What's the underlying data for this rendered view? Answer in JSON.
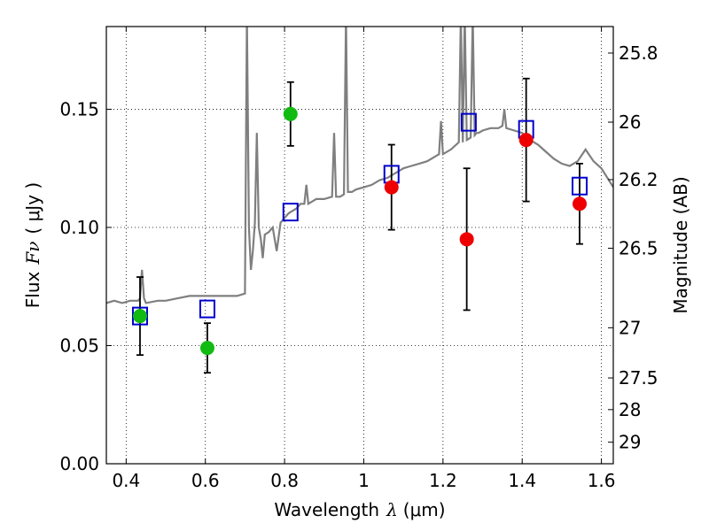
{
  "chart_data": {
    "type": "scatter",
    "xlabel_prefix": "Wavelength",
    "xlabel_symbol": "λ",
    "xlabel_unit": "(μm)",
    "ylabel_prefix": "Flux",
    "ylabel_symbol": "Fν",
    "ylabel_unit": "( μJy )",
    "ylabel_right": "Magnitude (AB)",
    "xlim": [
      0.35,
      1.63
    ],
    "ylim": [
      0.0,
      0.185
    ],
    "x_ticks": [
      {
        "value": 0.4,
        "label": "0.4"
      },
      {
        "value": 0.6,
        "label": "0.6"
      },
      {
        "value": 0.8,
        "label": "0.8"
      },
      {
        "value": 1.0,
        "label": "1"
      },
      {
        "value": 1.2,
        "label": "1.2"
      },
      {
        "value": 1.4,
        "label": "1.4"
      },
      {
        "value": 1.6,
        "label": "1.6"
      }
    ],
    "y_ticks": [
      {
        "value": 0.0,
        "label": "0.00"
      },
      {
        "value": 0.05,
        "label": "0.05"
      },
      {
        "value": 0.1,
        "label": "0.10"
      },
      {
        "value": 0.15,
        "label": "0.15"
      }
    ],
    "mag_ticks": [
      {
        "value": 25.8,
        "label": "25.8"
      },
      {
        "value": 26.0,
        "label": "26"
      },
      {
        "value": 26.2,
        "label": "26.2"
      },
      {
        "value": 26.5,
        "label": "26.5"
      },
      {
        "value": 27.0,
        "label": "27"
      },
      {
        "value": 27.5,
        "label": "27.5"
      },
      {
        "value": 28.0,
        "label": "28"
      },
      {
        "value": 29.0,
        "label": "29"
      }
    ],
    "series": [
      {
        "name": "model_spectrum",
        "type": "line",
        "color": "#7f7f7f",
        "x": [
          0.35,
          0.37,
          0.39,
          0.41,
          0.43,
          0.435,
          0.44,
          0.445,
          0.45,
          0.48,
          0.5,
          0.53,
          0.56,
          0.59,
          0.62,
          0.65,
          0.68,
          0.7,
          0.705,
          0.71,
          0.715,
          0.72,
          0.725,
          0.73,
          0.735,
          0.74,
          0.745,
          0.75,
          0.76,
          0.77,
          0.78,
          0.79,
          0.8,
          0.81,
          0.82,
          0.83,
          0.84,
          0.85,
          0.855,
          0.86,
          0.87,
          0.88,
          0.9,
          0.92,
          0.925,
          0.93,
          0.94,
          0.95,
          0.955,
          0.96,
          0.97,
          0.98,
          1.0,
          1.02,
          1.04,
          1.06,
          1.08,
          1.1,
          1.12,
          1.14,
          1.16,
          1.18,
          1.19,
          1.195,
          1.2,
          1.22,
          1.24,
          1.245,
          1.25,
          1.255,
          1.26,
          1.27,
          1.275,
          1.28,
          1.285,
          1.29,
          1.3,
          1.32,
          1.34,
          1.35,
          1.355,
          1.36,
          1.38,
          1.4,
          1.42,
          1.44,
          1.46,
          1.48,
          1.5,
          1.52,
          1.54,
          1.56,
          1.58,
          1.6,
          1.63
        ],
        "y": [
          0.068,
          0.069,
          0.068,
          0.069,
          0.069,
          0.07,
          0.082,
          0.07,
          0.068,
          0.069,
          0.069,
          0.07,
          0.071,
          0.071,
          0.071,
          0.071,
          0.071,
          0.072,
          0.19,
          0.1,
          0.082,
          0.09,
          0.102,
          0.14,
          0.1,
          0.095,
          0.087,
          0.097,
          0.098,
          0.1,
          0.09,
          0.102,
          0.104,
          0.106,
          0.107,
          0.108,
          0.11,
          0.11,
          0.118,
          0.11,
          0.111,
          0.112,
          0.112,
          0.113,
          0.14,
          0.113,
          0.113,
          0.114,
          0.19,
          0.115,
          0.115,
          0.116,
          0.117,
          0.118,
          0.12,
          0.121,
          0.123,
          0.125,
          0.126,
          0.127,
          0.128,
          0.13,
          0.131,
          0.145,
          0.131,
          0.133,
          0.136,
          0.19,
          0.136,
          0.19,
          0.137,
          0.138,
          0.19,
          0.139,
          0.14,
          0.14,
          0.141,
          0.142,
          0.142,
          0.143,
          0.15,
          0.142,
          0.141,
          0.14,
          0.137,
          0.135,
          0.132,
          0.129,
          0.127,
          0.126,
          0.128,
          0.133,
          0.128,
          0.125,
          0.117
        ]
      },
      {
        "name": "model_photometry",
        "type": "scatter",
        "marker": "square-open",
        "color": "#0000cc",
        "x": [
          0.435,
          0.605,
          0.815,
          1.07,
          1.265,
          1.41,
          1.545
        ],
        "y": [
          0.0625,
          0.0655,
          0.1065,
          0.1225,
          0.1445,
          0.1415,
          0.1175
        ]
      },
      {
        "name": "observed_optical",
        "type": "scatter",
        "marker": "circle",
        "color": "#11bb11",
        "x": [
          0.435,
          0.605,
          0.815
        ],
        "y": [
          0.0625,
          0.049,
          0.148
        ],
        "yerr": [
          0.0165,
          0.0105,
          0.0135
        ]
      },
      {
        "name": "observed_nir",
        "type": "scatter",
        "marker": "circle",
        "color": "#ee0000",
        "x": [
          1.07,
          1.26,
          1.41,
          1.545
        ],
        "y": [
          0.117,
          0.095,
          0.137,
          0.11
        ],
        "yerr": [
          0.018,
          0.03,
          0.026,
          0.017
        ]
      }
    ]
  }
}
